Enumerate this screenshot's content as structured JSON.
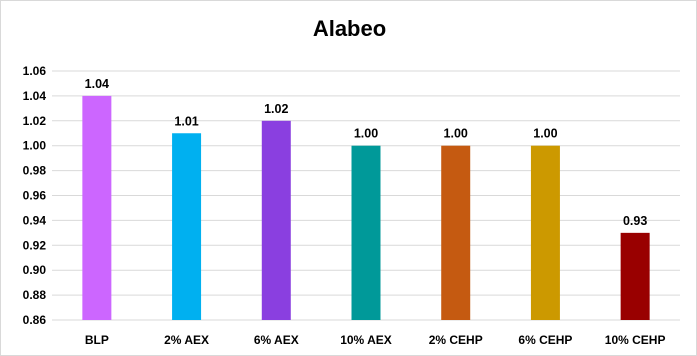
{
  "chart_data": {
    "type": "bar",
    "title": "Alabeo",
    "xlabel": "",
    "ylabel": "",
    "categories": [
      "BLP",
      "2% AEX",
      "6% AEX",
      "10% AEX",
      "2% CEHP",
      "6% CEHP",
      "10% CEHP"
    ],
    "values": [
      1.04,
      1.01,
      1.02,
      1.0,
      1.0,
      1.0,
      0.93
    ],
    "data_labels": [
      "1.04",
      "1.01",
      "1.02",
      "1.00",
      "1.00",
      "1.00",
      "0.93"
    ],
    "colors": [
      "#cc66ff",
      "#00b0f0",
      "#8a3fe0",
      "#009999",
      "#c55a11",
      "#cc9900",
      "#990000"
    ],
    "ylim": [
      0.86,
      1.06
    ],
    "yticks": [
      "0.86",
      "0.88",
      "0.90",
      "0.92",
      "0.94",
      "0.96",
      "0.98",
      "1.00",
      "1.02",
      "1.04",
      "1.06"
    ],
    "grid": true,
    "gridline_color": "#d9d9d9"
  }
}
